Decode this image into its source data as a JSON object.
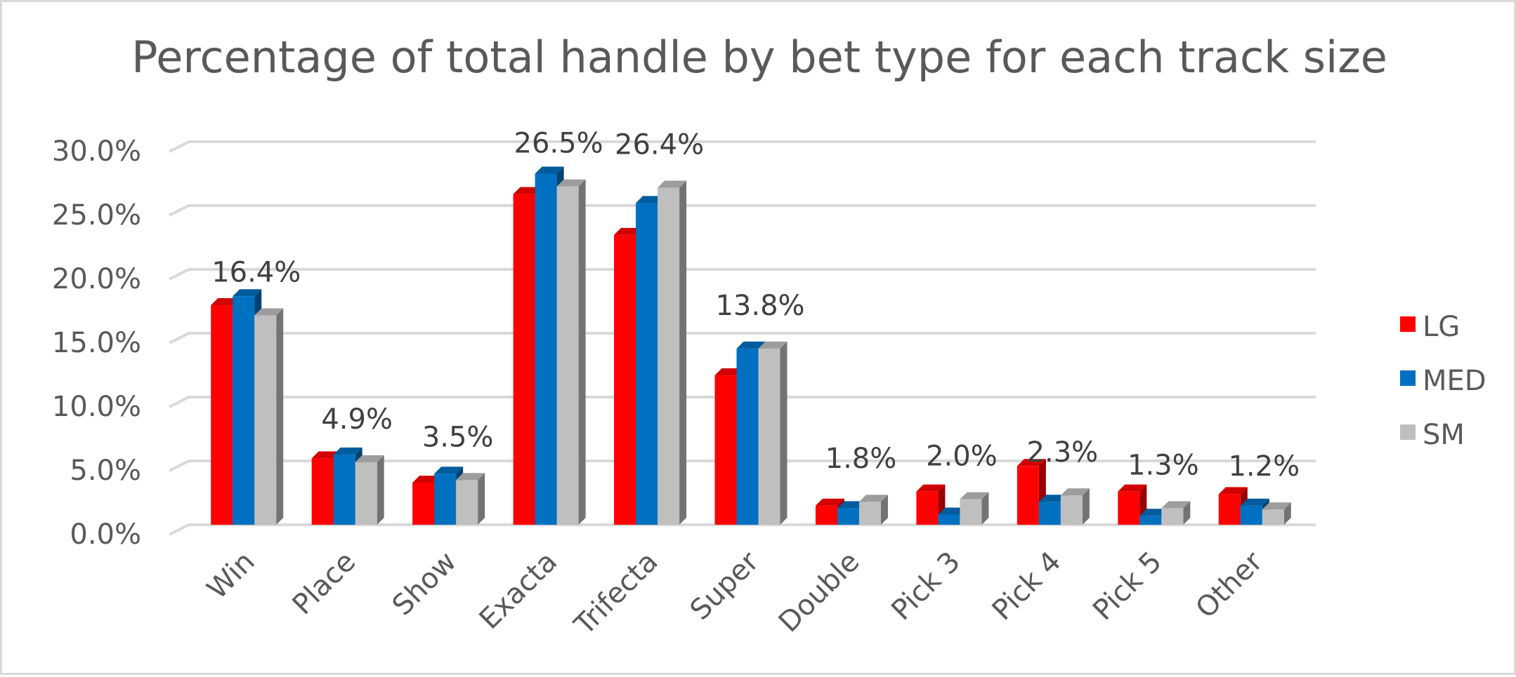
{
  "chart_data": {
    "type": "bar",
    "title": "Percentage of total handle by bet type for each track size",
    "categories": [
      "Win",
      "Place",
      "Show",
      "Exacta",
      "Trifecta",
      "Super",
      "Double",
      "Pick 3",
      "Pick 4",
      "Pick 5",
      "Other"
    ],
    "series": [
      {
        "name": "LG",
        "color": "#ff0000",
        "values": [
          17.2,
          5.2,
          3.3,
          25.9,
          22.7,
          11.7,
          1.5,
          2.6,
          4.6,
          2.6,
          2.4
        ]
      },
      {
        "name": "MED",
        "color": "#0070c0",
        "values": [
          17.9,
          5.5,
          4.0,
          27.5,
          25.2,
          13.8,
          1.3,
          0.8,
          1.8,
          0.7,
          1.5
        ]
      },
      {
        "name": "SM",
        "color": "#bfbfbf",
        "values": [
          16.4,
          4.9,
          3.5,
          26.5,
          26.4,
          13.8,
          1.8,
          2.0,
          2.3,
          1.3,
          1.2
        ]
      }
    ],
    "data_labels": [
      "16.4%",
      "4.9%",
      "3.5%",
      "26.5%",
      "26.4%",
      "13.8%",
      "1.8%",
      "2.0%",
      "2.3%",
      "1.3%",
      "1.2%"
    ],
    "y_ticks": [
      "0.0%",
      "5.0%",
      "10.0%",
      "15.0%",
      "20.0%",
      "25.0%",
      "30.0%"
    ],
    "ylim": [
      0,
      30
    ],
    "grid": true,
    "legend_position": "right",
    "style": "3d-clustered-column"
  }
}
